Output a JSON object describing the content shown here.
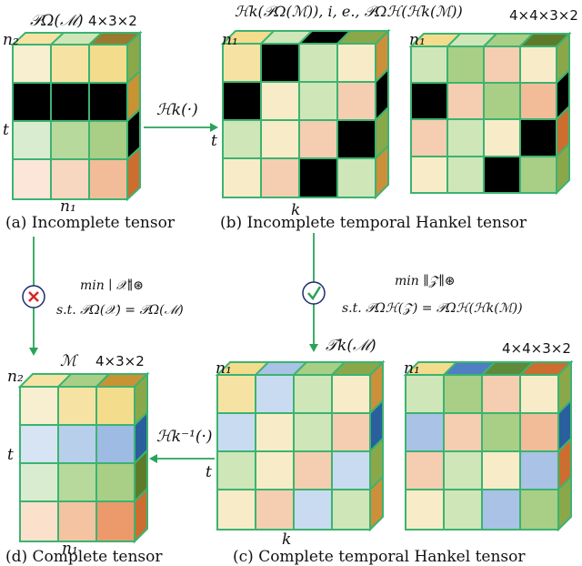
{
  "colors": {
    "grid_line": "#3cb371",
    "arrow": "#2aa35a",
    "observed_missing": "#000000",
    "cross_mark": "#d62728",
    "check_mark": "#2aa35a",
    "gold": "#e9d47b",
    "dark_olive": "#5f7b2a",
    "green": "#a8cf85",
    "light_green": "#cfe6b8",
    "cream": "#f8ecc8",
    "peach": "#f5cdb0",
    "orange": "#ec9a6b",
    "blue": "#a9c2e6",
    "light_blue": "#c9dbf1"
  },
  "panels": {
    "a": {
      "caption": "(a) Incomplete tensor",
      "title": "𝒫Ω(ℳ)",
      "dims": "4×3×2",
      "axis_top": "n₂",
      "axis_left": "t",
      "axis_bottom": "n₁"
    },
    "b": {
      "caption": "(b) Incomplete temporal Hankel tensor",
      "title": "ℋk(𝒫Ω(ℳ)), i, e., 𝒫Ωℋ(ℋk(ℳ))",
      "dims": "4×4×3×2",
      "axis_top_1": "n₁",
      "axis_top_2": "n₁",
      "axis_left": "t",
      "axis_bottom": "k"
    },
    "c": {
      "caption": "(c) Complete temporal Hankel tensor",
      "title": "𝒯k(ℳ)",
      "dims": "4×4×3×2",
      "axis_top_1": "n₁",
      "axis_top_2": "n₁",
      "axis_left": "t",
      "axis_bottom": "k"
    },
    "d": {
      "caption": "(d) Complete tensor",
      "title": "ℳ",
      "dims": "4×3×2",
      "axis_top": "n₂",
      "axis_left": "t",
      "axis_bottom": "n₁"
    }
  },
  "arrows": {
    "hankel": "ℋk(·)",
    "inverse_hankel": "ℋk⁻¹(·)",
    "left_objective": "min ∣ 𝒳∥⊛",
    "left_constraint": "s.t. 𝒫Ω(𝒳) = 𝒫Ω(ℳ)",
    "right_objective": "min ∥𝒵∥⊛",
    "right_constraint": "s.t. 𝒫Ωℋ(𝒵) = 𝒫Ωℋ(ℋk(ℳ))"
  }
}
